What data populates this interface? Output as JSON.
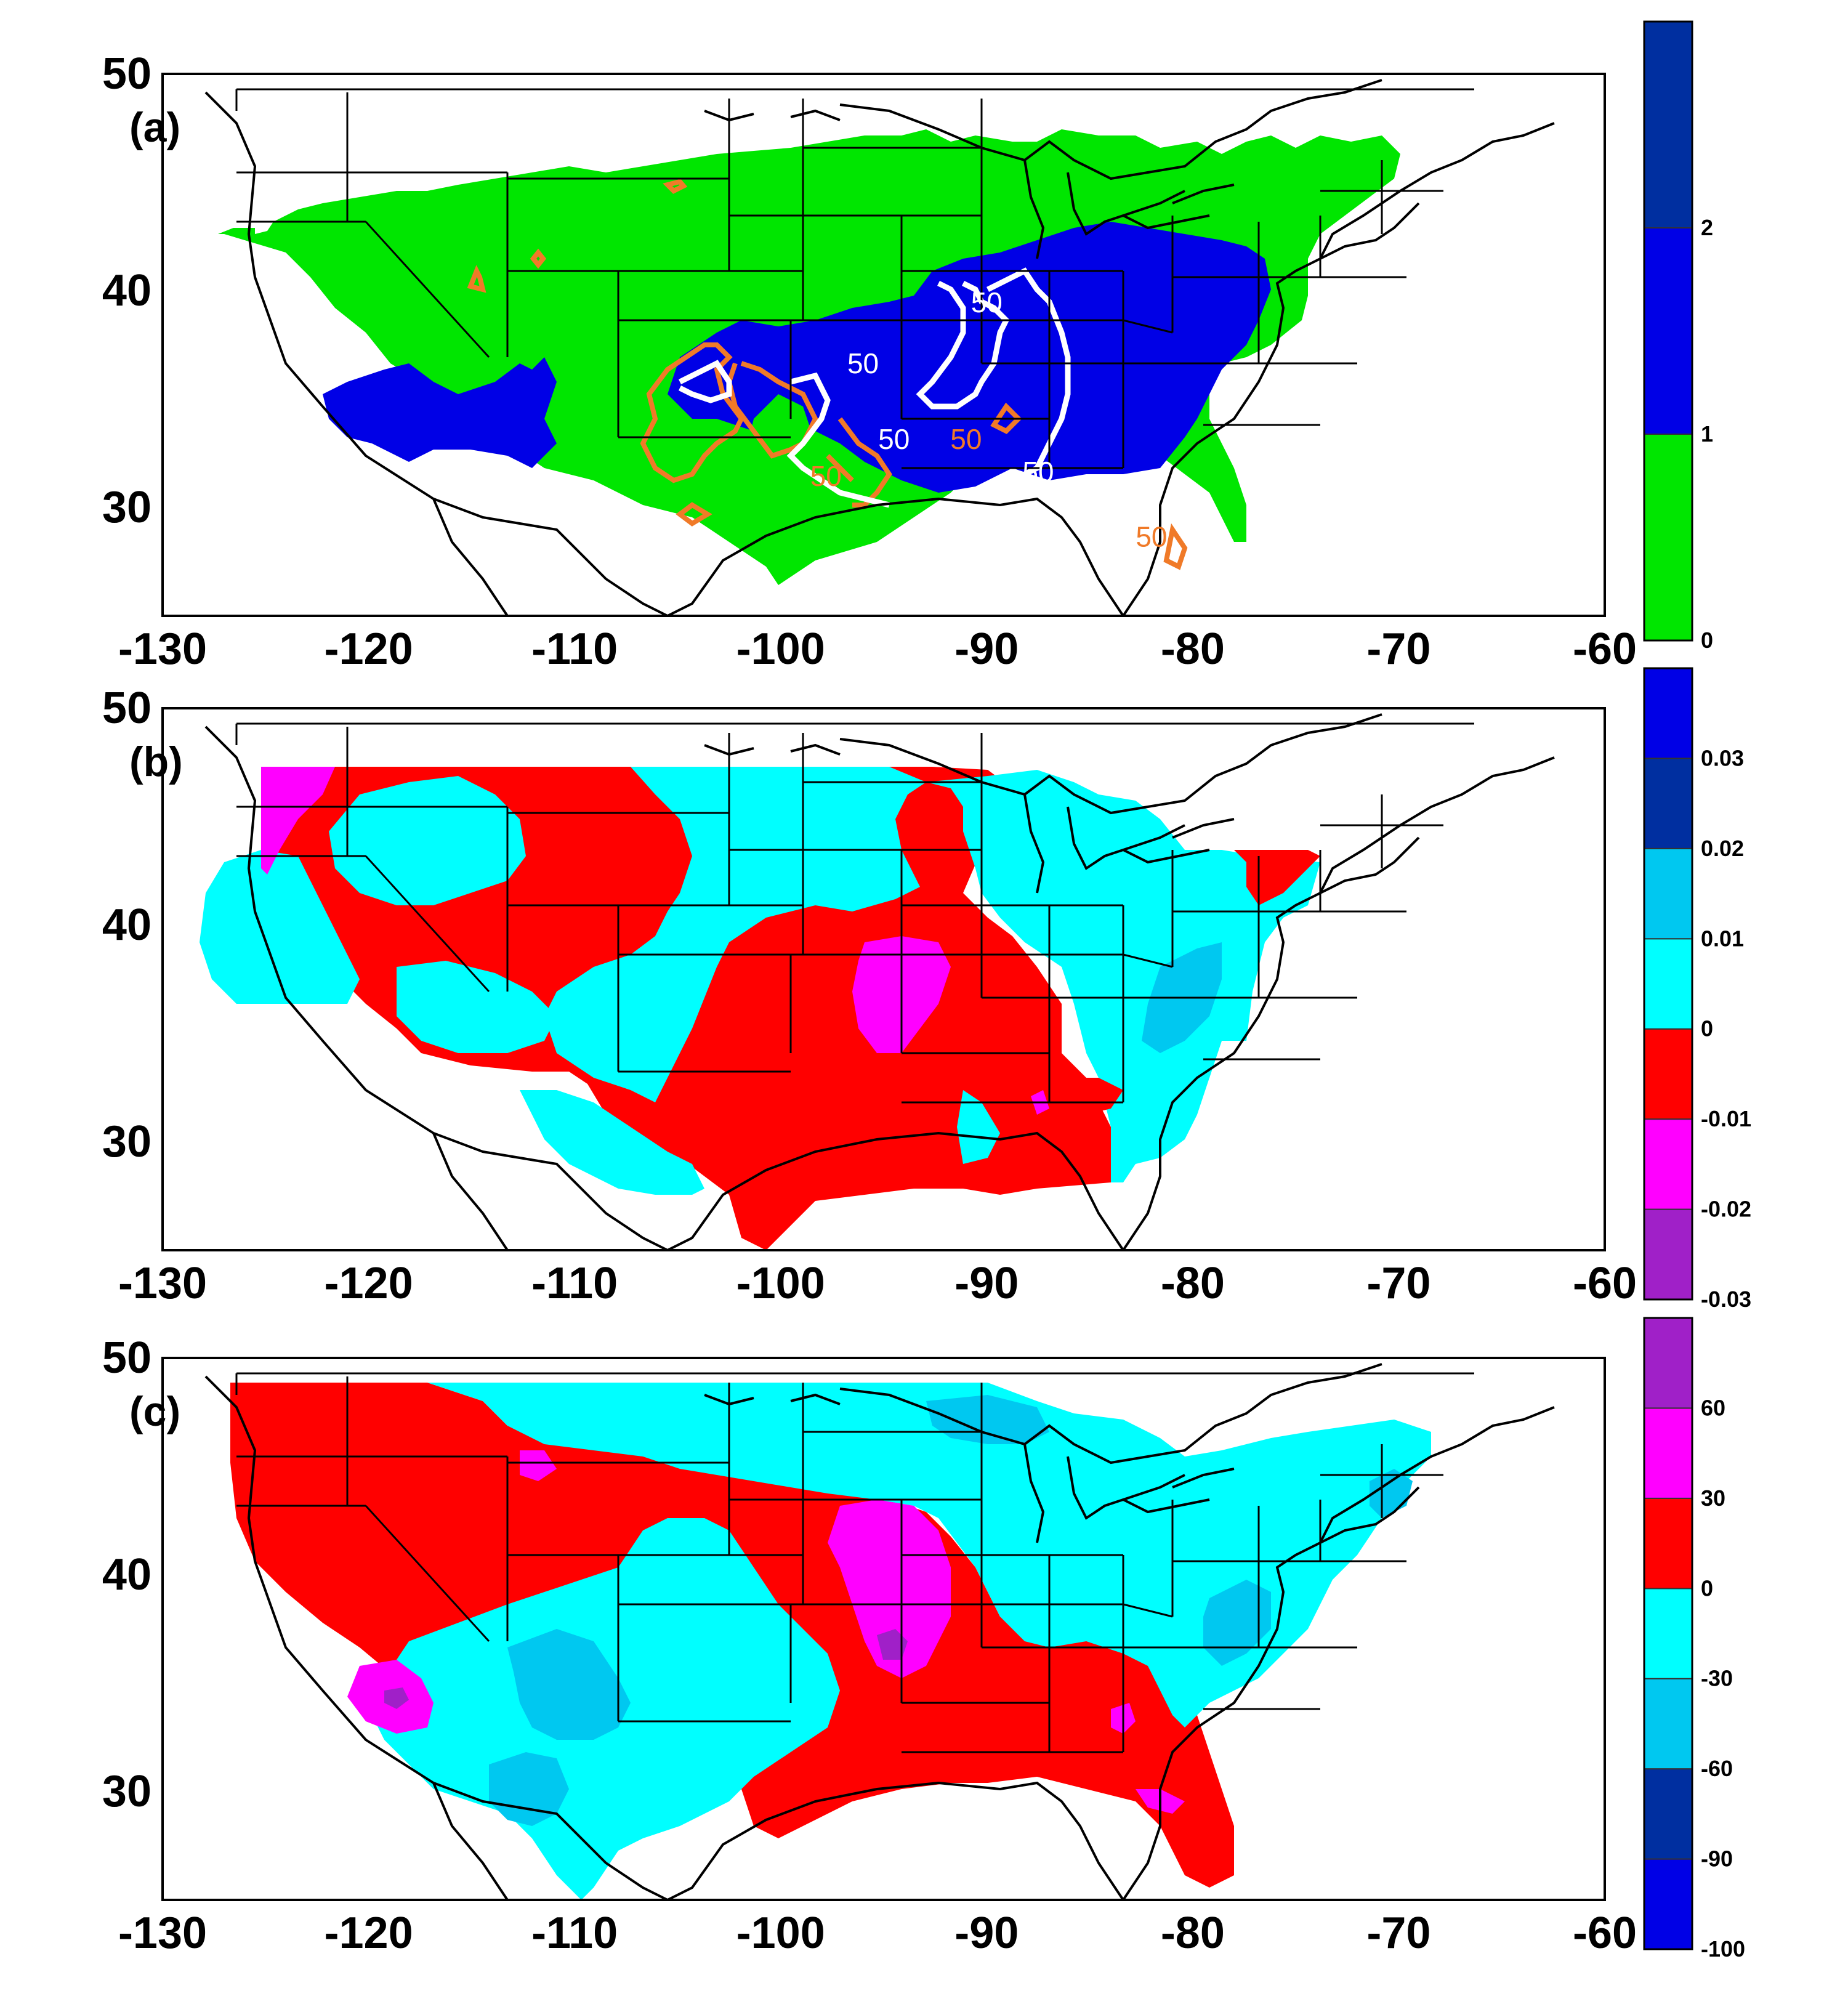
{
  "figure": {
    "x_ticks": [
      "-130",
      "-120",
      "-110",
      "-100",
      "-90",
      "-80",
      "-70",
      "-60"
    ],
    "y_ticks": [
      "50",
      "40",
      "30"
    ],
    "x_range": [
      -130,
      -60
    ],
    "y_range": [
      25,
      50
    ]
  },
  "panels": [
    {
      "label": "(a)",
      "colorbar": {
        "colors": [
          "#00e600",
          "#0000e6",
          "#002fa0"
        ],
        "labels": [
          "0",
          "1",
          "2"
        ]
      },
      "contour_labels": [
        {
          "text": "50",
          "color": "#ffffff",
          "lon": -90.0,
          "lat": 39.0
        },
        {
          "text": "50",
          "color": "#ffffff",
          "lon": -96.0,
          "lat": 36.2
        },
        {
          "text": "50",
          "color": "#ffffff",
          "lon": -94.5,
          "lat": 32.7
        },
        {
          "text": "50",
          "color": "#f07a28",
          "lon": -91.0,
          "lat": 32.7
        },
        {
          "text": "50",
          "color": "#ffffff",
          "lon": -87.5,
          "lat": 31.2
        },
        {
          "text": "50",
          "color": "#f07a28",
          "lon": -97.8,
          "lat": 31.0
        },
        {
          "text": "50",
          "color": "#f07a28",
          "lon": -82.0,
          "lat": 28.2
        }
      ]
    },
    {
      "label": "(b)",
      "colorbar": {
        "colors": [
          "#a020c8",
          "#ff00ff",
          "#ff0000",
          "#00ffff",
          "#00c8f0",
          "#002fa0",
          "#0000e6"
        ],
        "labels": [
          "-0.03",
          "-0.02",
          "-0.01",
          "0",
          "0.01",
          "0.02",
          "0.03"
        ]
      }
    },
    {
      "label": "(c)",
      "colorbar": {
        "colors": [
          "#0000e6",
          "#002fa0",
          "#00c8f0",
          "#00ffff",
          "#ff0000",
          "#ff00ff",
          "#a020c8"
        ],
        "labels": [
          "-100",
          "-90",
          "-60",
          "-30",
          "0",
          "30",
          "60"
        ]
      }
    }
  ]
}
